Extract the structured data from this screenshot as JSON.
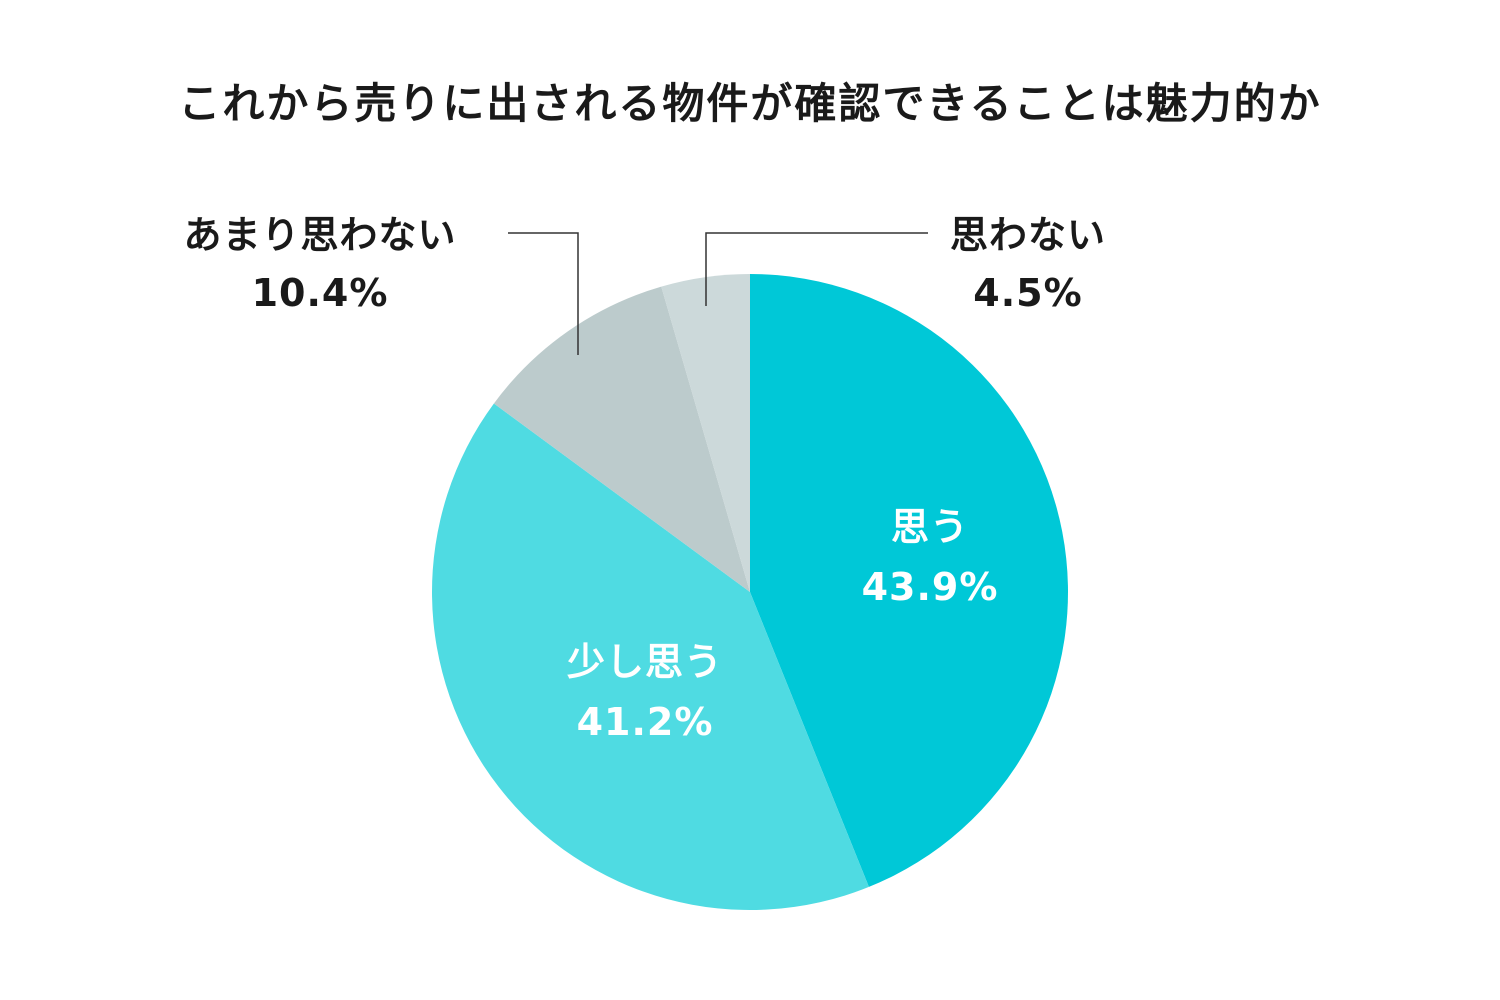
{
  "chart_data": {
    "type": "pie",
    "title": "これから売りに出される物件が確認できることは魅力的か",
    "slices": [
      {
        "label": "思う",
        "value": 43.9,
        "value_label": "43.9%",
        "color": "#00c8d7",
        "label_position": "inside"
      },
      {
        "label": "少し思う",
        "value": 41.2,
        "value_label": "41.2%",
        "color": "#4fdbe2",
        "label_position": "inside"
      },
      {
        "label": "あまり思わない",
        "value": 10.4,
        "value_label": "10.4%",
        "color": "#bccbcc",
        "label_position": "outside-left"
      },
      {
        "label": "思わない",
        "value": 4.5,
        "value_label": "4.5%",
        "color": "#ccd9da",
        "label_position": "outside-right"
      }
    ],
    "start": "top",
    "direction": "clockwise"
  }
}
